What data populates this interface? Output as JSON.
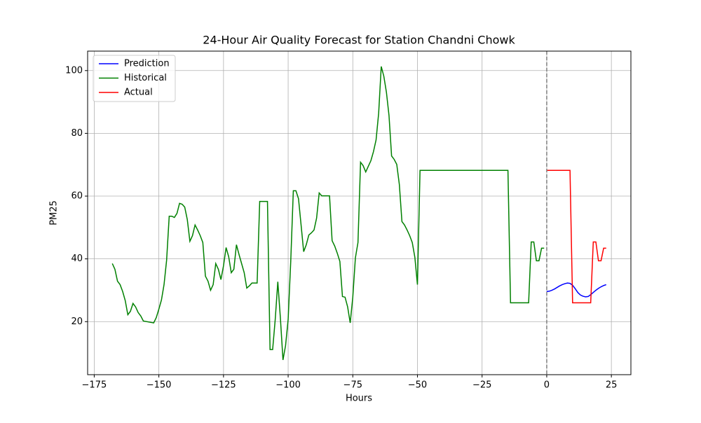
{
  "chart_data": {
    "type": "line",
    "title": "24-Hour Air Quality Forecast for Station Chandni Chowk",
    "x_label": "Hours",
    "y_label": "PM25",
    "xlim": [
      -177.55,
      32.55
    ],
    "ylim": [
      3.1,
      106.2
    ],
    "xticks": [
      {
        "value": -175,
        "label": "−175"
      },
      {
        "value": -150,
        "label": "−150"
      },
      {
        "value": -125,
        "label": "−125"
      },
      {
        "value": -100,
        "label": "−100"
      },
      {
        "value": -75,
        "label": "−75"
      },
      {
        "value": -50,
        "label": "−50"
      },
      {
        "value": -25,
        "label": "−25"
      },
      0,
      25
    ],
    "yticks": [
      20,
      40,
      60,
      80,
      100
    ],
    "grid": true,
    "legend": "upper left",
    "vline": {
      "x": 0,
      "color": "#808080"
    },
    "series": [
      {
        "name": "Prediction",
        "color": "#0000ff",
        "x": [
          0,
          1,
          2,
          3,
          4,
          5,
          6,
          7,
          8,
          9,
          10,
          11,
          12,
          13,
          14,
          15,
          16,
          17,
          18,
          19,
          20,
          21,
          22,
          23
        ],
        "values": [
          29.6,
          29.7,
          30.0,
          30.4,
          30.9,
          31.4,
          31.8,
          32.1,
          32.3,
          32.2,
          31.6,
          30.5,
          29.3,
          28.5,
          28.1,
          27.9,
          28.0,
          28.6,
          29.3,
          30.0,
          30.6,
          31.1,
          31.5,
          31.8
        ]
      },
      {
        "name": "Historical",
        "color": "#008000",
        "x": [
          -168,
          -167,
          -166,
          -165,
          -164,
          -163,
          -162,
          -161,
          -160,
          -159,
          -158,
          -157,
          -156,
          -152,
          -151,
          -150,
          -149,
          -148,
          -147,
          -146,
          -145,
          -144,
          -143,
          -142,
          -141,
          -140,
          -139,
          -138,
          -137,
          -136,
          -135,
          -134,
          -133,
          -132,
          -131,
          -130,
          -129,
          -128,
          -127,
          -126,
          -125,
          -124,
          -123,
          -122,
          -121,
          -120,
          -119,
          -118,
          -117,
          -116,
          -115,
          -114,
          -112,
          -111,
          -108,
          -107,
          -106,
          -105,
          -104,
          -103,
          -102,
          -101,
          -100,
          -99,
          -98,
          -97,
          -96,
          -95,
          -94,
          -93,
          -92,
          -91,
          -90,
          -89,
          -88,
          -87,
          -84,
          -83,
          -82,
          -81,
          -80,
          -79,
          -78,
          -77,
          -76,
          -75,
          -74,
          -73,
          -72,
          -71,
          -70,
          -69,
          -68,
          -67,
          -66,
          -65,
          -64,
          -63,
          -62,
          -61,
          -60,
          -59,
          -58,
          -57,
          -56,
          -55,
          -54,
          -53,
          -52,
          -51,
          -50,
          -49,
          -15,
          -14,
          -7,
          -6,
          -5,
          -4,
          -3,
          -2,
          -1
        ],
        "values": [
          38.5,
          36.7,
          32.9,
          31.8,
          29.6,
          26.7,
          22.2,
          23.3,
          25.8,
          24.7,
          22.9,
          21.8,
          20.2,
          19.6,
          21.3,
          24,
          26.9,
          31.8,
          39.6,
          53.6,
          53.6,
          53.2,
          54.5,
          57.7,
          57.4,
          56.5,
          52.5,
          45.6,
          47.4,
          50.8,
          49.2,
          47.4,
          45.2,
          34.5,
          32.9,
          30,
          31.8,
          38.5,
          36.7,
          33.4,
          37.8,
          43.6,
          40.7,
          35.6,
          36.7,
          44.5,
          41.4,
          38.5,
          35.6,
          30.7,
          31.4,
          32.3,
          32.3,
          58.3,
          58.3,
          11.1,
          11.1,
          20.7,
          32.7,
          21.1,
          7.8,
          12.4,
          20.7,
          39.2,
          61.7,
          61.7,
          59.2,
          50.8,
          42.3,
          44.5,
          47.6,
          48.3,
          49.2,
          53,
          61,
          60.1,
          60.1,
          45.8,
          44.1,
          41.8,
          39.2,
          28,
          27.8,
          24.7,
          19.6,
          27.8,
          40.3,
          45.2,
          70.8,
          69.7,
          67.7,
          69.5,
          71.3,
          74.2,
          77.9,
          86.4,
          101.3,
          98.2,
          93.1,
          85.7,
          72.8,
          71.7,
          70.1,
          63.7,
          51.9,
          50.8,
          49.2,
          47.4,
          45.2,
          40.5,
          31.8,
          68.2,
          68.2,
          26,
          26,
          45.4,
          45.4,
          39.4,
          39.4,
          43.4,
          43.4
        ]
      },
      {
        "name": "Actual",
        "color": "#ff0000",
        "x": [
          0,
          9,
          10,
          17,
          18,
          19,
          20,
          21,
          22,
          23
        ],
        "values": [
          68.2,
          68.2,
          26,
          26,
          45.4,
          45.4,
          39.4,
          39.4,
          43.4,
          43.4
        ]
      }
    ]
  }
}
